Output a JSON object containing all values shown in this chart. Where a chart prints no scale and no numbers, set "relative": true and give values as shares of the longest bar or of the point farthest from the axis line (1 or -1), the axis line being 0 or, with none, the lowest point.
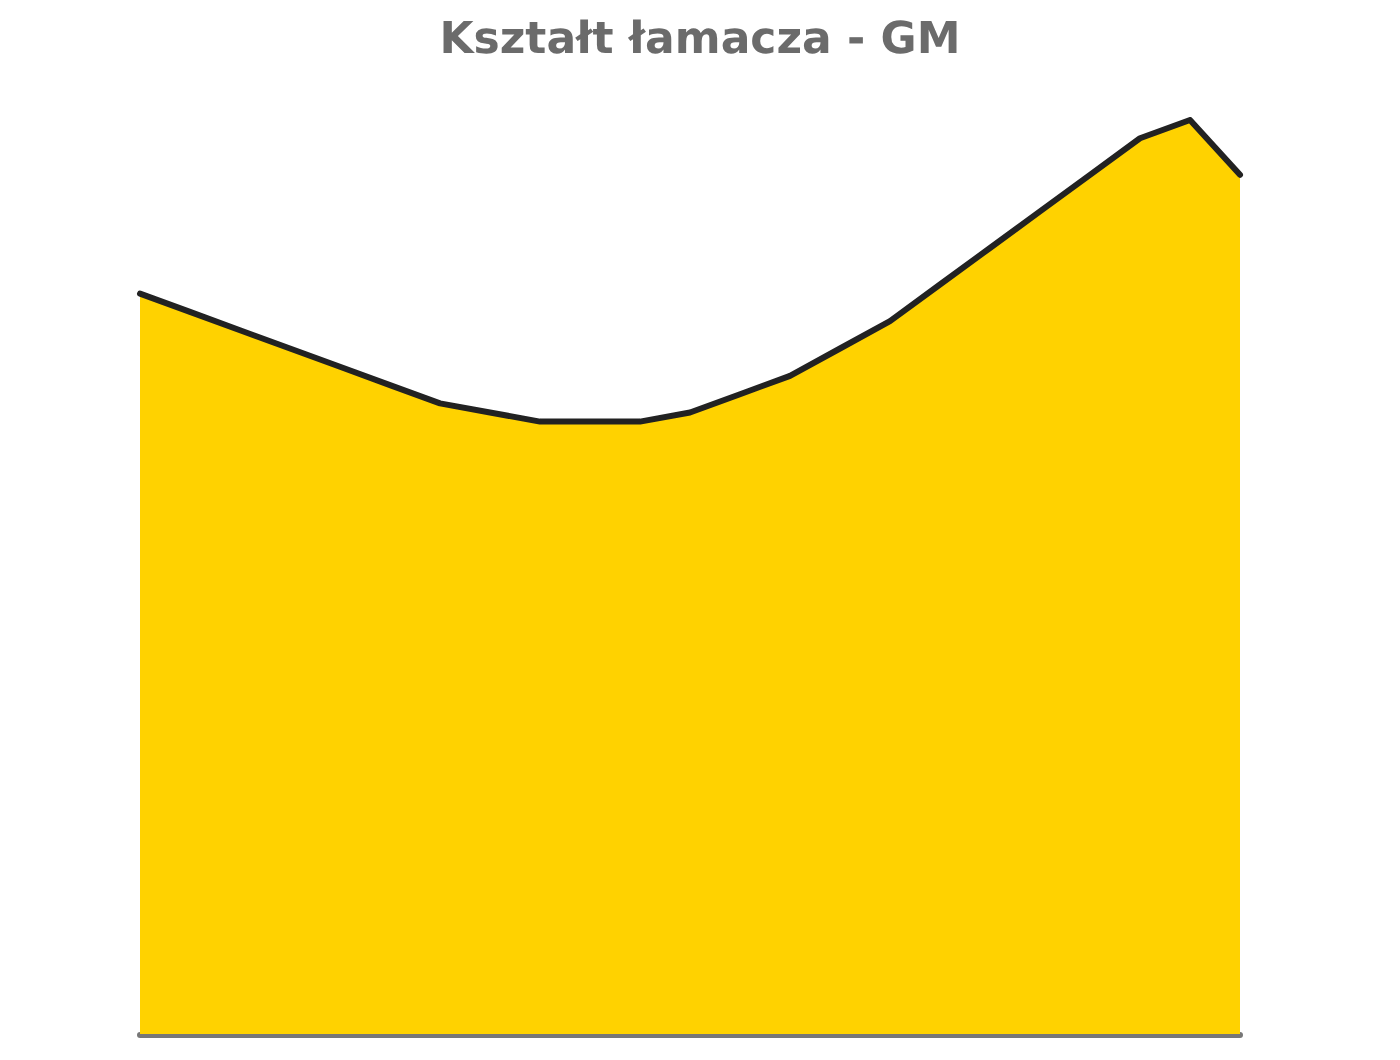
{
  "chart_data": {
    "type": "area",
    "title": "Kształt łamacza - GM",
    "relative": true,
    "grid": false,
    "marker": "none",
    "line_style": "solid",
    "categories": [
      null,
      null,
      null,
      null,
      null,
      null,
      null,
      null,
      null,
      null,
      null,
      null,
      null,
      null,
      null,
      null,
      null,
      null,
      null,
      null,
      null,
      null,
      null
    ],
    "series": [
      {
        "color": "#ffd200",
        "values": [
          0.81,
          0.79,
          0.77,
          0.75,
          0.73,
          0.71,
          0.69,
          0.68,
          0.67,
          0.67,
          0.67,
          0.68,
          0.7,
          0.72,
          0.75,
          0.78,
          0.82,
          0.86,
          0.9,
          0.94,
          0.98,
          1.0,
          0.94
        ]
      }
    ]
  }
}
